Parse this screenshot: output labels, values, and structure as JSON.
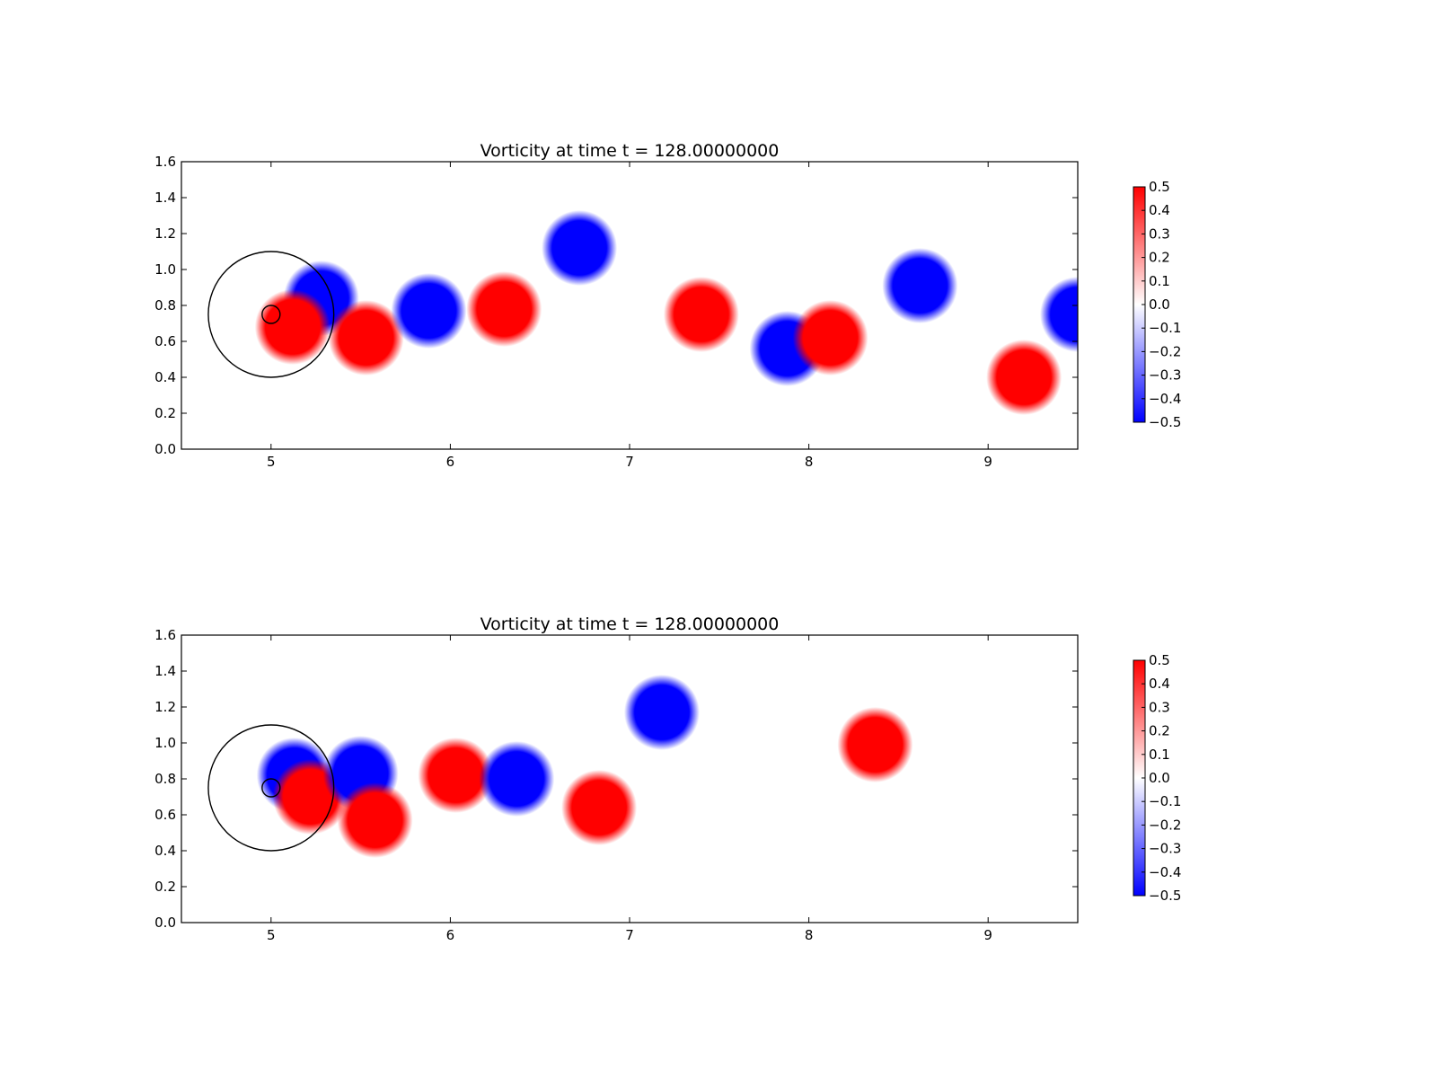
{
  "chart_data": [
    {
      "type": "heatmap",
      "title": "Vorticity at time t =   128.00000000",
      "xlim": [
        4.5,
        9.5
      ],
      "ylim": [
        0.0,
        1.6
      ],
      "xticks": [
        5,
        6,
        7,
        8,
        9
      ],
      "xtick_labels": [
        "5",
        "6",
        "7",
        "8",
        "9"
      ],
      "yticks": [
        0.0,
        0.2,
        0.4,
        0.6,
        0.8,
        1.0,
        1.2,
        1.4,
        1.6
      ],
      "ytick_labels": [
        "0.0",
        "0.2",
        "0.4",
        "0.6",
        "0.8",
        "1.0",
        "1.2",
        "1.4",
        "1.6"
      ],
      "colorbar": {
        "min": -0.5,
        "max": 0.5,
        "colormap": [
          "#0000ff",
          "#ffffff",
          "#ff0000"
        ],
        "ticks": [
          0.5,
          0.4,
          0.3,
          0.2,
          0.1,
          0.0,
          -0.1,
          -0.2,
          -0.3,
          -0.4,
          -0.5
        ],
        "tick_labels": [
          "0.5",
          "0.4",
          "0.3",
          "0.2",
          "0.1",
          "0.0",
          "−0.1",
          "−0.2",
          "−0.3",
          "−0.4",
          "−0.5"
        ]
      },
      "circles": [
        {
          "cx": 5.0,
          "cy": 0.75,
          "r": 0.35
        },
        {
          "cx": 5.0,
          "cy": 0.75,
          "r": 0.05
        }
      ],
      "vortices": [
        {
          "x": 5.28,
          "y": 0.84,
          "w": -0.5
        },
        {
          "x": 5.12,
          "y": 0.68,
          "w": 0.5
        },
        {
          "x": 5.53,
          "y": 0.62,
          "w": 0.5
        },
        {
          "x": 5.88,
          "y": 0.77,
          "w": -0.5
        },
        {
          "x": 6.3,
          "y": 0.78,
          "w": 0.5
        },
        {
          "x": 6.72,
          "y": 1.12,
          "w": -0.5
        },
        {
          "x": 7.4,
          "y": 0.75,
          "w": 0.5
        },
        {
          "x": 7.88,
          "y": 0.56,
          "w": -0.5
        },
        {
          "x": 8.12,
          "y": 0.62,
          "w": 0.5
        },
        {
          "x": 8.62,
          "y": 0.91,
          "w": -0.5
        },
        {
          "x": 9.2,
          "y": 0.4,
          "w": 0.5
        },
        {
          "x": 9.5,
          "y": 0.75,
          "w": -0.5
        }
      ]
    },
    {
      "type": "heatmap",
      "title": "Vorticity at time t =   128.00000000",
      "xlim": [
        4.5,
        9.5
      ],
      "ylim": [
        0.0,
        1.6
      ],
      "xticks": [
        5,
        6,
        7,
        8,
        9
      ],
      "xtick_labels": [
        "5",
        "6",
        "7",
        "8",
        "9"
      ],
      "yticks": [
        0.0,
        0.2,
        0.4,
        0.6,
        0.8,
        1.0,
        1.2,
        1.4,
        1.6
      ],
      "ytick_labels": [
        "0.0",
        "0.2",
        "0.4",
        "0.6",
        "0.8",
        "1.0",
        "1.2",
        "1.4",
        "1.6"
      ],
      "colorbar": {
        "min": -0.5,
        "max": 0.5,
        "colormap": [
          "#0000ff",
          "#ffffff",
          "#ff0000"
        ],
        "ticks": [
          0.5,
          0.4,
          0.3,
          0.2,
          0.1,
          0.0,
          -0.1,
          -0.2,
          -0.3,
          -0.4,
          -0.5
        ],
        "tick_labels": [
          "0.5",
          "0.4",
          "0.3",
          "0.2",
          "0.1",
          "0.0",
          "−0.1",
          "−0.2",
          "−0.3",
          "−0.4",
          "−0.5"
        ]
      },
      "circles": [
        {
          "cx": 5.0,
          "cy": 0.75,
          "r": 0.35
        },
        {
          "cx": 5.0,
          "cy": 0.75,
          "r": 0.05
        }
      ],
      "vortices": [
        {
          "x": 5.13,
          "y": 0.82,
          "w": -0.5
        },
        {
          "x": 5.22,
          "y": 0.7,
          "w": 0.5
        },
        {
          "x": 5.5,
          "y": 0.83,
          "w": -0.5
        },
        {
          "x": 5.58,
          "y": 0.57,
          "w": 0.5
        },
        {
          "x": 6.03,
          "y": 0.82,
          "w": 0.5
        },
        {
          "x": 6.37,
          "y": 0.8,
          "w": -0.5
        },
        {
          "x": 6.83,
          "y": 0.64,
          "w": 0.5
        },
        {
          "x": 7.18,
          "y": 1.17,
          "w": -0.5
        },
        {
          "x": 8.37,
          "y": 0.99,
          "w": 0.5
        }
      ]
    }
  ]
}
